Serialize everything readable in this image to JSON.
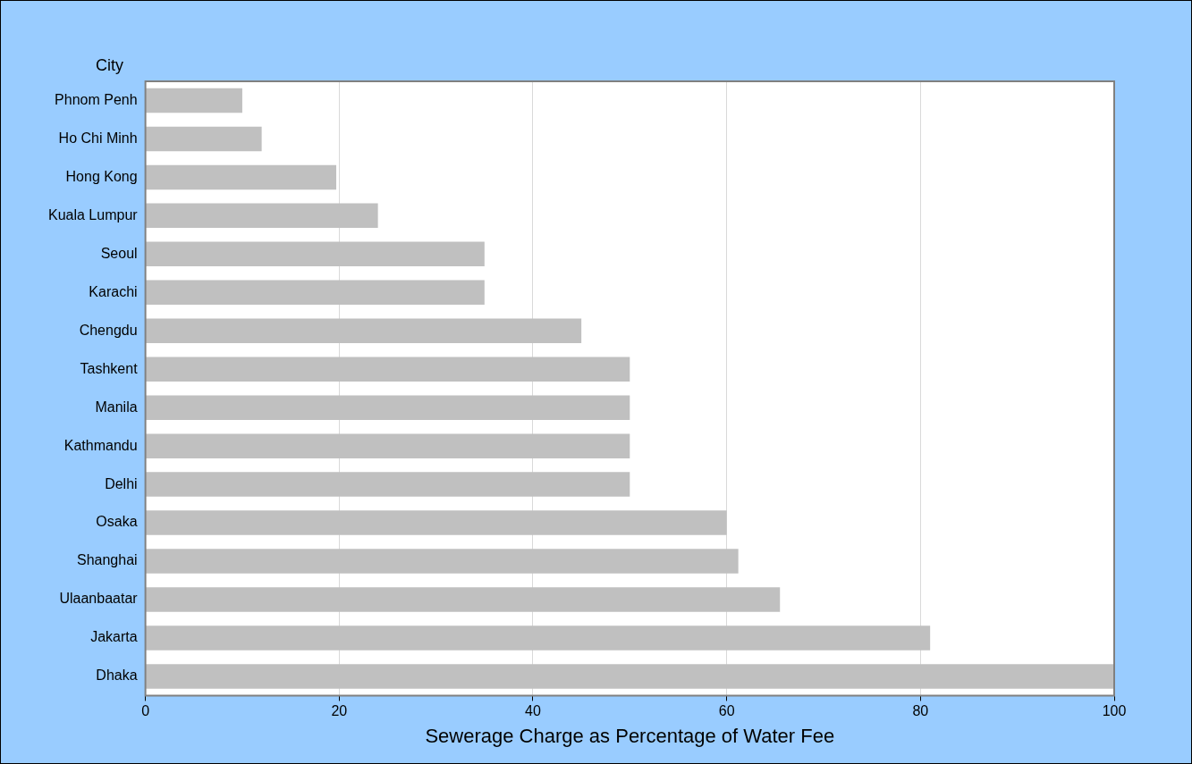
{
  "chart_data": {
    "type": "bar",
    "orientation": "horizontal",
    "xlabel": "Sewerage Charge as Percentage of Water Fee",
    "ylabel": "City",
    "categories": [
      "Phnom Penh",
      "Ho Chi Minh",
      "Hong Kong",
      "Kuala Lumpur",
      "Seoul",
      "Karachi",
      "Chengdu",
      "Tashkent",
      "Manila",
      "Kathmandu",
      "Delhi",
      "Osaka",
      "Shanghai",
      "Ulaanbaatar",
      "Jakarta",
      "Dhaka"
    ],
    "values": [
      10,
      12,
      19.7,
      24,
      35,
      35,
      45,
      50,
      50,
      50,
      50,
      60,
      61.2,
      65.5,
      81,
      100
    ],
    "color": "#c0c0c0",
    "xlim": [
      0,
      100
    ],
    "xticks": [
      0,
      20,
      40,
      60,
      80,
      100
    ],
    "grid": "x",
    "legend": false
  }
}
